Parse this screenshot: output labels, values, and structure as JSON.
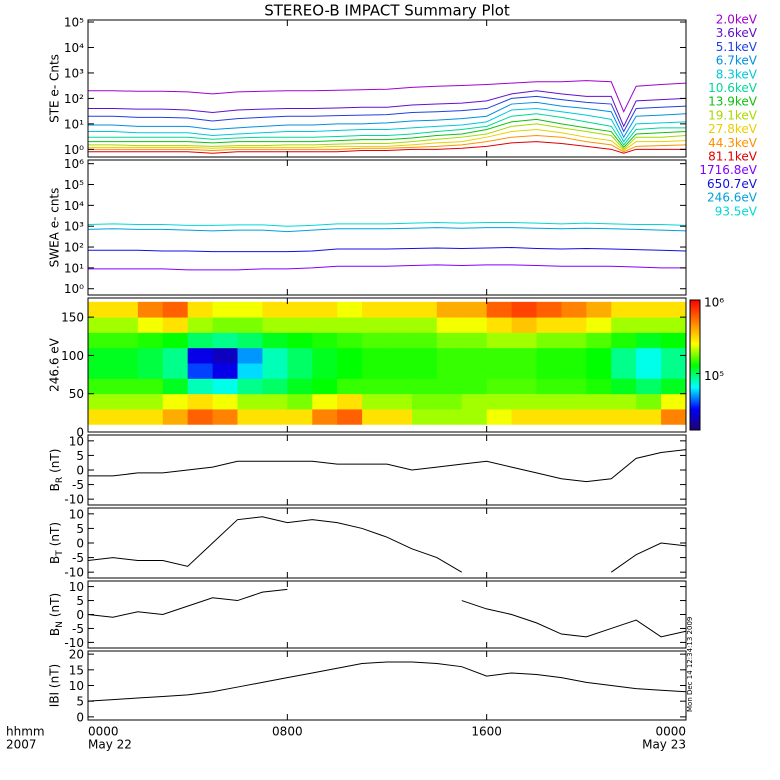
{
  "chart_data": [
    {
      "type": "line",
      "title": "STEREO-B IMPACT Summary Plot",
      "ylabel": "STE e- Cnts",
      "log": true,
      "xlim": [
        0,
        24
      ],
      "ylim": [
        0.5,
        120000
      ],
      "yticks": [
        {
          "value": 1,
          "label": "10⁰"
        },
        {
          "value": 10,
          "label": "10¹"
        },
        {
          "value": 100,
          "label": "10²"
        },
        {
          "value": 1000,
          "label": "10³"
        },
        {
          "value": 10000,
          "label": "10⁴"
        },
        {
          "value": 100000,
          "label": "10⁵"
        }
      ],
      "x": [
        0,
        1,
        2,
        3,
        4,
        5,
        6,
        7,
        8,
        9,
        10,
        11,
        12,
        13,
        14,
        15,
        16,
        17,
        18,
        19,
        20,
        21,
        21.5,
        22,
        23,
        24
      ],
      "series": [
        {
          "name": "2.0keV",
          "color": "#a000d0",
          "values": [
            200,
            200,
            190,
            190,
            180,
            150,
            180,
            190,
            200,
            200,
            210,
            220,
            230,
            270,
            300,
            320,
            350,
            400,
            450,
            450,
            500,
            450,
            30,
            300,
            350,
            400
          ]
        },
        {
          "name": "3.6keV",
          "color": "#6010d0",
          "values": [
            40,
            40,
            38,
            38,
            35,
            28,
            35,
            38,
            40,
            40,
            42,
            45,
            45,
            55,
            60,
            65,
            80,
            150,
            200,
            150,
            120,
            120,
            8,
            80,
            90,
            100
          ]
        },
        {
          "name": "5.1keV",
          "color": "#2040e0",
          "values": [
            20,
            20,
            18,
            18,
            17,
            13,
            16,
            18,
            20,
            20,
            21,
            22,
            23,
            28,
            30,
            33,
            40,
            100,
            120,
            90,
            70,
            60,
            5,
            40,
            45,
            50
          ]
        },
        {
          "name": "6.7keV",
          "color": "#0090e0",
          "values": [
            9,
            9,
            8,
            8,
            8,
            6,
            7,
            8,
            9,
            9,
            10,
            10,
            11,
            13,
            14,
            16,
            20,
            60,
            70,
            50,
            40,
            30,
            3,
            20,
            22,
            25
          ]
        },
        {
          "name": "8.3keV",
          "color": "#00c8d8",
          "values": [
            5,
            5,
            4.5,
            4.5,
            4.5,
            3.5,
            4,
            4.5,
            5,
            5,
            5.5,
            6,
            6,
            7,
            8,
            9,
            12,
            35,
            40,
            30,
            22,
            15,
            2,
            10,
            11,
            12
          ]
        },
        {
          "name": "10.6keV",
          "color": "#00d898",
          "values": [
            3,
            3,
            3,
            3,
            3,
            2.5,
            2.8,
            3,
            3,
            3,
            3.2,
            3.5,
            3.5,
            4,
            5,
            6,
            8,
            20,
            25,
            18,
            12,
            8,
            1.5,
            6,
            7,
            7
          ]
        },
        {
          "name": "13.9keV",
          "color": "#10c010",
          "values": [
            2,
            2,
            2,
            2,
            2,
            1.8,
            2,
            2,
            2,
            2,
            2.2,
            2.4,
            2.4,
            2.8,
            3.5,
            4,
            6,
            12,
            15,
            10,
            7,
            5,
            1.2,
            4,
            4.5,
            5
          ]
        },
        {
          "name": "19.1keV",
          "color": "#a8d800",
          "values": [
            1.5,
            1.5,
            1.4,
            1.4,
            1.4,
            1.3,
            1.4,
            1.4,
            1.5,
            1.5,
            1.6,
            1.7,
            1.7,
            2,
            2.5,
            3,
            4,
            8,
            10,
            7,
            5,
            3.5,
            1,
            3,
            3,
            3.5
          ]
        },
        {
          "name": "27.8keV",
          "color": "#e8d000",
          "values": [
            1.2,
            1.2,
            1.2,
            1.2,
            1.2,
            1.1,
            1.2,
            1.2,
            1.2,
            1.2,
            1.3,
            1.3,
            1.3,
            1.5,
            1.8,
            2,
            3,
            5,
            6,
            4.5,
            3,
            2.2,
            0.9,
            2,
            2,
            2.2
          ]
        },
        {
          "name": "44.3keV",
          "color": "#ff9000",
          "values": [
            1,
            1,
            1,
            1,
            1,
            0.9,
            1,
            1,
            1,
            1,
            1,
            1.1,
            1.1,
            1.2,
            1.3,
            1.5,
            2,
            3,
            3.5,
            3,
            2,
            1.5,
            0.8,
            1.3,
            1.4,
            1.5
          ]
        },
        {
          "name": "81.1keV",
          "color": "#e00000",
          "values": [
            0.8,
            0.8,
            0.8,
            0.8,
            0.8,
            0.7,
            0.8,
            0.8,
            0.8,
            0.8,
            0.8,
            0.9,
            0.9,
            1,
            1,
            1.1,
            1.3,
            1.8,
            2,
            1.7,
            1.3,
            1,
            0.7,
            1,
            1,
            1
          ]
        }
      ]
    },
    {
      "type": "line",
      "ylabel": "SWEA e- cnts",
      "log": true,
      "xlim": [
        0,
        24
      ],
      "ylim": [
        0.5,
        1500000
      ],
      "yticks": [
        {
          "value": 1,
          "label": "10⁰"
        },
        {
          "value": 10,
          "label": "10¹"
        },
        {
          "value": 100,
          "label": "10²"
        },
        {
          "value": 1000,
          "label": "10³"
        },
        {
          "value": 10000,
          "label": "10⁴"
        },
        {
          "value": 100000,
          "label": "10⁵"
        },
        {
          "value": 1000000,
          "label": "10⁶"
        }
      ],
      "x": [
        0,
        1,
        2,
        3,
        4,
        5,
        6,
        7,
        8,
        9,
        10,
        11,
        12,
        13,
        14,
        15,
        16,
        17,
        18,
        19,
        20,
        21,
        22,
        23,
        24
      ],
      "series": [
        {
          "name": "1716.8eV",
          "color": "#8000ff",
          "values": [
            9,
            9,
            9,
            9,
            8,
            8,
            8,
            9,
            9,
            10,
            12,
            12,
            12,
            13,
            14,
            13,
            14,
            14,
            13,
            12,
            12,
            12,
            11,
            10,
            10
          ]
        },
        {
          "name": "650.7eV",
          "color": "#1010e0",
          "values": [
            70,
            70,
            70,
            65,
            65,
            60,
            60,
            60,
            60,
            65,
            80,
            80,
            80,
            85,
            90,
            85,
            90,
            95,
            85,
            80,
            85,
            80,
            75,
            70,
            65
          ]
        },
        {
          "name": "246.6eV",
          "color": "#00a0e0",
          "values": [
            700,
            750,
            700,
            700,
            650,
            600,
            650,
            650,
            550,
            650,
            750,
            750,
            750,
            800,
            850,
            800,
            850,
            850,
            800,
            750,
            800,
            750,
            700,
            650,
            600
          ]
        },
        {
          "name": "93.5eV",
          "color": "#00d8d8",
          "values": [
            1200,
            1300,
            1200,
            1200,
            1100,
            1100,
            1150,
            1150,
            1000,
            1100,
            1300,
            1300,
            1300,
            1400,
            1500,
            1400,
            1500,
            1500,
            1400,
            1300,
            1400,
            1300,
            1200,
            1200,
            1100
          ]
        }
      ]
    },
    {
      "type": "heatmap",
      "ylabel": "246.6 eV",
      "xlim": [
        0,
        24
      ],
      "ylim": [
        0,
        175
      ],
      "yticks": [
        0,
        50,
        100,
        150
      ],
      "x_edges": [
        0,
        1,
        2,
        3,
        4,
        5,
        6,
        7,
        8,
        9,
        10,
        11,
        12,
        13,
        14,
        15,
        16,
        17,
        18,
        19,
        20,
        21,
        22,
        23,
        24
      ],
      "y_edges": [
        10,
        30,
        50,
        70,
        90,
        110,
        130,
        150,
        170
      ],
      "values": [
        [
          300000,
          300000,
          300000,
          400000,
          600000,
          500000,
          300000,
          300000,
          300000,
          500000,
          600000,
          300000,
          300000,
          200000,
          200000,
          200000,
          250000,
          300000,
          300000,
          300000,
          300000,
          300000,
          300000,
          500000
        ],
        [
          200000,
          200000,
          200000,
          250000,
          300000,
          250000,
          200000,
          200000,
          180000,
          250000,
          300000,
          200000,
          200000,
          180000,
          180000,
          200000,
          200000,
          200000,
          200000,
          200000,
          200000,
          200000,
          180000,
          250000
        ],
        [
          150000,
          150000,
          150000,
          120000,
          80000,
          70000,
          90000,
          100000,
          120000,
          130000,
          150000,
          150000,
          150000,
          150000,
          150000,
          150000,
          160000,
          160000,
          150000,
          150000,
          140000,
          120000,
          100000,
          120000
        ],
        [
          120000,
          120000,
          110000,
          90000,
          40000,
          30000,
          60000,
          80000,
          100000,
          120000,
          130000,
          140000,
          140000,
          140000,
          150000,
          150000,
          150000,
          150000,
          140000,
          140000,
          130000,
          90000,
          70000,
          90000
        ],
        [
          120000,
          120000,
          110000,
          90000,
          30000,
          25000,
          50000,
          80000,
          100000,
          120000,
          130000,
          140000,
          140000,
          140000,
          150000,
          150000,
          150000,
          150000,
          140000,
          140000,
          130000,
          90000,
          70000,
          90000
        ],
        [
          150000,
          150000,
          140000,
          130000,
          100000,
          90000,
          100000,
          120000,
          130000,
          140000,
          150000,
          160000,
          160000,
          160000,
          180000,
          180000,
          200000,
          200000,
          180000,
          180000,
          160000,
          140000,
          120000,
          130000
        ],
        [
          200000,
          200000,
          250000,
          300000,
          200000,
          180000,
          180000,
          200000,
          200000,
          200000,
          200000,
          200000,
          200000,
          200000,
          250000,
          250000,
          300000,
          350000,
          300000,
          300000,
          250000,
          200000,
          200000,
          200000
        ],
        [
          300000,
          300000,
          500000,
          600000,
          300000,
          250000,
          250000,
          300000,
          300000,
          300000,
          250000,
          300000,
          300000,
          300000,
          400000,
          400000,
          600000,
          700000,
          600000,
          500000,
          400000,
          300000,
          300000,
          300000
        ]
      ],
      "clim": [
        17000,
        1000000
      ],
      "log_color": true,
      "cticks": [
        {
          "value": 100000,
          "label": "10⁵"
        },
        {
          "value": 1000000,
          "label": "10⁶"
        }
      ],
      "colorscale": [
        "#200070",
        "#0000ff",
        "#00ffff",
        "#00ff00",
        "#ffff00",
        "#ff8000",
        "#ff0000"
      ]
    },
    {
      "type": "line",
      "ylabel": {
        "main": "B",
        "sub": "R",
        "unit": "(nT)"
      },
      "xlim": [
        0,
        24
      ],
      "ylim": [
        -12,
        12
      ],
      "yticks": [
        -10,
        -5,
        0,
        5,
        10
      ],
      "x": [
        0,
        1,
        2,
        3,
        4,
        5,
        6,
        7,
        8,
        9,
        10,
        11,
        12,
        13,
        14,
        15,
        16,
        17,
        18,
        19,
        20,
        21,
        22,
        23,
        24
      ],
      "series": [
        {
          "color": "#000000",
          "values": [
            -2,
            -2,
            -1,
            -1,
            0,
            1,
            3,
            3,
            3,
            3,
            2,
            2,
            2,
            0,
            1,
            2,
            3,
            1,
            -1,
            -3,
            -4,
            -3,
            4,
            6,
            7
          ]
        }
      ]
    },
    {
      "type": "line",
      "ylabel": {
        "main": "B",
        "sub": "T",
        "unit": "(nT)"
      },
      "xlim": [
        0,
        24
      ],
      "ylim": [
        -12,
        12
      ],
      "yticks": [
        -10,
        -5,
        0,
        5,
        10
      ],
      "x": [
        0,
        1,
        2,
        3,
        4,
        5,
        6,
        7,
        8,
        9,
        10,
        11,
        12,
        13,
        14,
        15,
        16,
        17,
        18,
        19,
        20,
        21,
        22,
        23,
        24
      ],
      "series": [
        {
          "color": "#000000",
          "values": [
            -6,
            -5,
            -6,
            -6,
            -8,
            0,
            8,
            9,
            7,
            8,
            7,
            5,
            2,
            -2,
            -5,
            -10,
            null,
            null,
            null,
            null,
            null,
            -10,
            -4,
            0,
            -1
          ]
        }
      ]
    },
    {
      "type": "line",
      "ylabel": {
        "main": "B",
        "sub": "N",
        "unit": "(nT)"
      },
      "xlim": [
        0,
        24
      ],
      "ylim": [
        -12,
        12
      ],
      "yticks": [
        -10,
        -5,
        0,
        5,
        10
      ],
      "x": [
        0,
        1,
        2,
        3,
        4,
        5,
        6,
        7,
        8,
        9,
        10,
        11,
        12,
        13,
        14,
        15,
        16,
        17,
        18,
        19,
        20,
        21,
        22,
        23,
        24
      ],
      "series": [
        {
          "color": "#000000",
          "values": [
            0,
            -1,
            1,
            0,
            3,
            6,
            5,
            8,
            9,
            null,
            null,
            null,
            null,
            null,
            null,
            5,
            2,
            0,
            -3,
            -7,
            -8,
            -5,
            -2,
            -8,
            -6
          ]
        }
      ]
    },
    {
      "type": "line",
      "ylabel": "IBI (nT)",
      "xlim": [
        0,
        24
      ],
      "ylim": [
        -1,
        21
      ],
      "yticks": [
        0,
        5,
        10,
        15,
        20
      ],
      "x": [
        0,
        1,
        2,
        3,
        4,
        5,
        6,
        7,
        8,
        9,
        10,
        11,
        12,
        13,
        14,
        15,
        16,
        17,
        18,
        19,
        20,
        21,
        22,
        23,
        24
      ],
      "series": [
        {
          "color": "#000000",
          "values": [
            5,
            5.5,
            6,
            6.5,
            7,
            8,
            9.5,
            11,
            12.5,
            14,
            15.5,
            17,
            17.5,
            17.5,
            17,
            16,
            13,
            14,
            13.5,
            12.5,
            11,
            10,
            9,
            8.5,
            8
          ]
        }
      ],
      "xticks": [
        {
          "value": 0,
          "label": "0000"
        },
        {
          "value": 8,
          "label": "0800"
        },
        {
          "value": 16,
          "label": "1600"
        },
        {
          "value": 24,
          "label": "0000"
        }
      ],
      "date_ticks": [
        {
          "value": 0,
          "label": "May 22"
        },
        {
          "value": 24,
          "label": "May 23"
        }
      ],
      "xlabel": [
        "hhmm",
        "2007"
      ],
      "annotation": "Mon Dec 14 12:34:13 2009"
    }
  ]
}
